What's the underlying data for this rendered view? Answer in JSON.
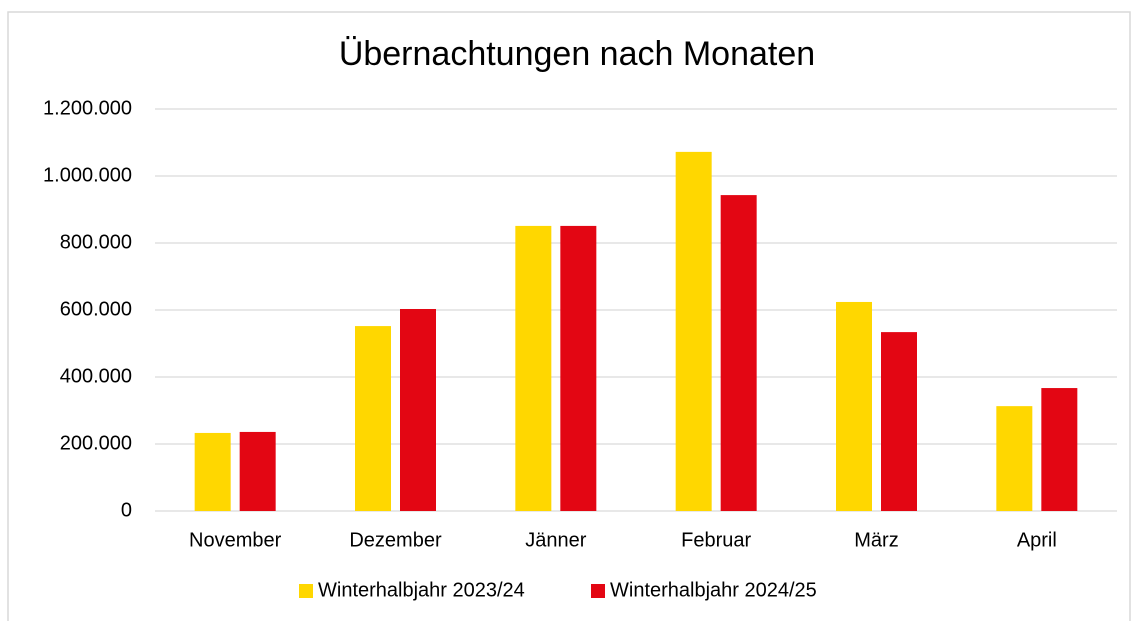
{
  "chart_data": {
    "type": "bar",
    "title": "Übernachtungen nach Monaten",
    "categories": [
      "November",
      "Dezember",
      "Jänner",
      "Februar",
      "März",
      "April"
    ],
    "series": [
      {
        "name": "Winterhalbjahr 2023/24",
        "color": "#ffd700",
        "values": [
          233000,
          552000,
          851000,
          1072000,
          624000,
          313000
        ]
      },
      {
        "name": "Winterhalbjahr 2024/25",
        "color": "#e30613",
        "values": [
          236000,
          603000,
          851000,
          943000,
          534000,
          367000
        ]
      }
    ],
    "ylim": [
      0,
      1200000
    ],
    "yticks": [
      0,
      {
        "value": 200000,
        "label": "200.000"
      },
      {
        "value": 400000,
        "label": "400.000"
      },
      {
        "value": 600000,
        "label": "600.000"
      },
      {
        "value": 800000,
        "label": "800.000"
      },
      {
        "value": 1000000,
        "label": "1.000.000"
      },
      {
        "value": 1200000,
        "label": "1.200.000"
      }
    ],
    "grid": true,
    "legend": "bottom"
  }
}
